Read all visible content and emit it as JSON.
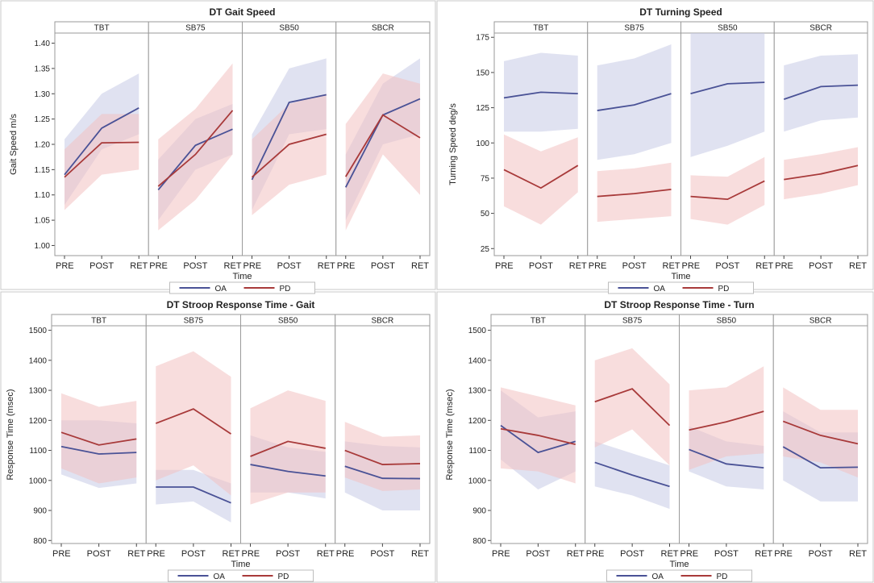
{
  "colors": {
    "OA_line": "#4a5296",
    "OA_band": "#c7cbe6",
    "PD_line": "#a83a3a",
    "PD_band": "#f3c1c1"
  },
  "chart_data": [
    {
      "type": "line",
      "title": "DT Gait Speed",
      "xlabel": "Time",
      "ylabel": "Gait Speed m/s",
      "ylim": [
        0.98,
        1.42
      ],
      "yticks": [
        1.0,
        1.05,
        1.1,
        1.15,
        1.2,
        1.25,
        1.3,
        1.35,
        1.4
      ],
      "ytick_labels": [
        "1.00",
        "1.05",
        "1.10",
        "1.15",
        "1.20",
        "1.25",
        "1.30",
        "1.35",
        "1.40"
      ],
      "x": [
        "PRE",
        "POST",
        "RET"
      ],
      "panels": [
        {
          "name": "TBT",
          "series": [
            {
              "name": "OA",
              "values": [
                1.14,
                1.232,
                1.272
              ],
              "lower": [
                1.08,
                1.19,
                1.22
              ],
              "upper": [
                1.21,
                1.3,
                1.34
              ]
            },
            {
              "name": "PD",
              "values": [
                1.135,
                1.203,
                1.204
              ],
              "lower": [
                1.07,
                1.14,
                1.15
              ],
              "upper": [
                1.19,
                1.26,
                1.26
              ]
            }
          ]
        },
        {
          "name": "SB75",
          "series": [
            {
              "name": "OA",
              "values": [
                1.11,
                1.198,
                1.23
              ],
              "lower": [
                1.05,
                1.15,
                1.18
              ],
              "upper": [
                1.17,
                1.25,
                1.28
              ]
            },
            {
              "name": "PD",
              "values": [
                1.117,
                1.18,
                1.267
              ],
              "lower": [
                1.03,
                1.09,
                1.18
              ],
              "upper": [
                1.21,
                1.27,
                1.36
              ]
            }
          ]
        },
        {
          "name": "SB50",
          "series": [
            {
              "name": "OA",
              "values": [
                1.13,
                1.283,
                1.298
              ],
              "lower": [
                1.07,
                1.22,
                1.23
              ],
              "upper": [
                1.22,
                1.35,
                1.37
              ]
            },
            {
              "name": "PD",
              "values": [
                1.135,
                1.2,
                1.22
              ],
              "lower": [
                1.06,
                1.12,
                1.14
              ],
              "upper": [
                1.21,
                1.28,
                1.3
              ]
            }
          ]
        },
        {
          "name": "SBCR",
          "series": [
            {
              "name": "OA",
              "values": [
                1.115,
                1.258,
                1.29
              ],
              "lower": [
                1.05,
                1.2,
                1.22
              ],
              "upper": [
                1.18,
                1.32,
                1.37
              ]
            },
            {
              "name": "PD",
              "values": [
                1.136,
                1.258,
                1.213
              ],
              "lower": [
                1.03,
                1.18,
                1.1
              ],
              "upper": [
                1.24,
                1.34,
                1.32
              ]
            }
          ]
        }
      ],
      "legend": [
        "OA",
        "PD"
      ]
    },
    {
      "type": "line",
      "title": "DT Turning Speed",
      "xlabel": "Time",
      "ylabel": "Turning Speed deg/s",
      "ylim": [
        20,
        178
      ],
      "yticks": [
        25,
        50,
        75,
        100,
        125,
        150,
        175
      ],
      "ytick_labels": [
        "25",
        "50",
        "75",
        "100",
        "125",
        "150",
        "175"
      ],
      "x": [
        "PRE",
        "POST",
        "RET"
      ],
      "panels": [
        {
          "name": "TBT",
          "series": [
            {
              "name": "OA",
              "values": [
                132,
                136,
                135
              ],
              "lower": [
                108,
                108,
                110
              ],
              "upper": [
                158,
                164,
                162
              ]
            },
            {
              "name": "PD",
              "values": [
                81,
                68,
                84
              ],
              "lower": [
                55,
                42,
                65
              ],
              "upper": [
                106,
                94,
                104
              ]
            }
          ]
        },
        {
          "name": "SB75",
          "series": [
            {
              "name": "OA",
              "values": [
                123,
                127,
                135
              ],
              "lower": [
                88,
                92,
                100
              ],
              "upper": [
                155,
                160,
                170
              ]
            },
            {
              "name": "PD",
              "values": [
                62,
                64,
                67
              ],
              "lower": [
                44,
                46,
                48
              ],
              "upper": [
                80,
                82,
                86
              ]
            }
          ]
        },
        {
          "name": "SB50",
          "series": [
            {
              "name": "OA",
              "values": [
                135,
                142,
                143
              ],
              "lower": [
                90,
                98,
                108
              ],
              "upper": [
                178,
                178,
                178
              ]
            },
            {
              "name": "PD",
              "values": [
                62,
                60,
                73
              ],
              "lower": [
                46,
                42,
                56
              ],
              "upper": [
                77,
                76,
                90
              ]
            }
          ]
        },
        {
          "name": "SBCR",
          "series": [
            {
              "name": "OA",
              "values": [
                131,
                140,
                141
              ],
              "lower": [
                108,
                116,
                118
              ],
              "upper": [
                155,
                162,
                163
              ]
            },
            {
              "name": "PD",
              "values": [
                74,
                78,
                84
              ],
              "lower": [
                60,
                64,
                70
              ],
              "upper": [
                88,
                92,
                97
              ]
            }
          ]
        }
      ],
      "legend": [
        "OA",
        "PD"
      ]
    },
    {
      "type": "line",
      "title": "DT Stroop Response Time - Gait",
      "xlabel": "Time",
      "ylabel": "Response Time (msec)",
      "ylim": [
        790,
        1515
      ],
      "yticks": [
        800,
        900,
        1000,
        1100,
        1200,
        1300,
        1400,
        1500
      ],
      "ytick_labels": [
        "800",
        "900",
        "1000",
        "1100",
        "1200",
        "1300",
        "1400",
        "1500"
      ],
      "x": [
        "PRE",
        "POST",
        "RET"
      ],
      "panels": [
        {
          "name": "TBT",
          "series": [
            {
              "name": "OA",
              "values": [
                1113,
                1088,
                1093
              ],
              "lower": [
                1020,
                975,
                990
              ],
              "upper": [
                1200,
                1200,
                1190
              ]
            },
            {
              "name": "PD",
              "values": [
                1160,
                1118,
                1138
              ],
              "lower": [
                1040,
                990,
                1010
              ],
              "upper": [
                1290,
                1245,
                1265
              ]
            }
          ]
        },
        {
          "name": "SB75",
          "series": [
            {
              "name": "OA",
              "values": [
                978,
                978,
                925
              ],
              "lower": [
                920,
                930,
                860
              ],
              "upper": [
                1035,
                1035,
                990
              ]
            },
            {
              "name": "PD",
              "values": [
                1190,
                1238,
                1155
              ],
              "lower": [
                1000,
                1050,
                950
              ],
              "upper": [
                1380,
                1430,
                1345
              ]
            }
          ]
        },
        {
          "name": "SB50",
          "series": [
            {
              "name": "OA",
              "values": [
                1053,
                1030,
                1015
              ],
              "lower": [
                960,
                960,
                940
              ],
              "upper": [
                1150,
                1110,
                1095
              ]
            },
            {
              "name": "PD",
              "values": [
                1080,
                1130,
                1107
              ],
              "lower": [
                920,
                960,
                960
              ],
              "upper": [
                1240,
                1300,
                1265
              ]
            }
          ]
        },
        {
          "name": "SBCR",
          "series": [
            {
              "name": "OA",
              "values": [
                1047,
                1007,
                1006
              ],
              "lower": [
                960,
                900,
                900
              ],
              "upper": [
                1130,
                1115,
                1110
              ]
            },
            {
              "name": "PD",
              "values": [
                1100,
                1053,
                1056
              ],
              "lower": [
                1010,
                965,
                970
              ],
              "upper": [
                1195,
                1145,
                1150
              ]
            }
          ]
        }
      ],
      "legend": [
        "OA",
        "PD"
      ]
    },
    {
      "type": "line",
      "title": "DT Stroop Response Time - Turn",
      "xlabel": "Time",
      "ylabel": "Response Time (msec)",
      "ylim": [
        790,
        1515
      ],
      "yticks": [
        800,
        900,
        1000,
        1100,
        1200,
        1300,
        1400,
        1500
      ],
      "ytick_labels": [
        "800",
        "900",
        "1000",
        "1100",
        "1200",
        "1300",
        "1400",
        "1500"
      ],
      "x": [
        "PRE",
        "POST",
        "RET"
      ],
      "panels": [
        {
          "name": "TBT",
          "series": [
            {
              "name": "OA",
              "values": [
                1183,
                1093,
                1130
              ],
              "lower": [
                1070,
                970,
                1030
              ],
              "upper": [
                1300,
                1210,
                1230
              ]
            },
            {
              "name": "PD",
              "values": [
                1172,
                1150,
                1120
              ],
              "lower": [
                1040,
                1030,
                990
              ],
              "upper": [
                1310,
                1280,
                1250
              ]
            }
          ]
        },
        {
          "name": "SB75",
          "series": [
            {
              "name": "OA",
              "values": [
                1060,
                1018,
                980
              ],
              "lower": [
                980,
                950,
                905
              ],
              "upper": [
                1130,
                1090,
                1050
              ]
            },
            {
              "name": "PD",
              "values": [
                1262,
                1305,
                1183
              ],
              "lower": [
                1110,
                1170,
                1050
              ],
              "upper": [
                1400,
                1440,
                1320
              ]
            }
          ]
        },
        {
          "name": "SB50",
          "series": [
            {
              "name": "OA",
              "values": [
                1103,
                1055,
                1042
              ],
              "lower": [
                1030,
                980,
                970
              ],
              "upper": [
                1180,
                1130,
                1115
              ]
            },
            {
              "name": "PD",
              "values": [
                1168,
                1195,
                1230
              ],
              "lower": [
                1035,
                1080,
                1090
              ],
              "upper": [
                1300,
                1310,
                1380
              ]
            }
          ]
        },
        {
          "name": "SBCR",
          "series": [
            {
              "name": "OA",
              "values": [
                1112,
                1042,
                1044
              ],
              "lower": [
                1000,
                930,
                930
              ],
              "upper": [
                1230,
                1160,
                1160
              ]
            },
            {
              "name": "PD",
              "values": [
                1197,
                1150,
                1122
              ],
              "lower": [
                1080,
                1060,
                1010
              ],
              "upper": [
                1310,
                1235,
                1235
              ]
            }
          ]
        }
      ],
      "legend": [
        "OA",
        "PD"
      ]
    }
  ]
}
